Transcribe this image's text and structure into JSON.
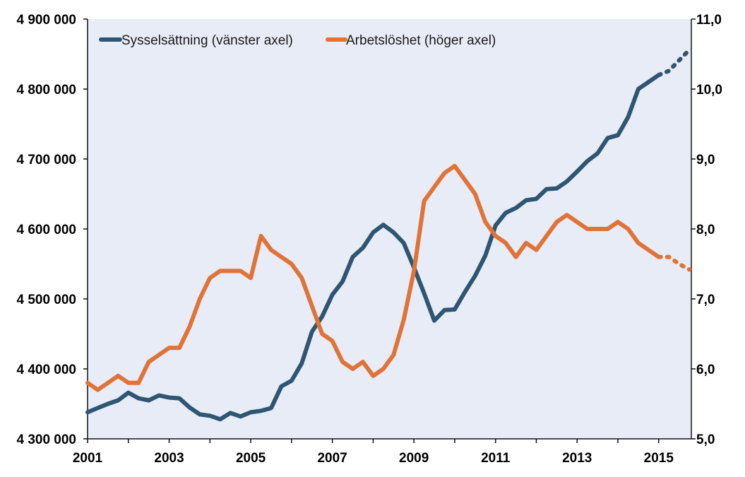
{
  "chart_data": {
    "type": "line",
    "title": "",
    "xlabel": "",
    "ylabel": "",
    "y2label": "",
    "grid": false,
    "legend_position": "top",
    "x_ticks": [
      "2001",
      "2003",
      "2005",
      "2007",
      "2009",
      "2011",
      "2013",
      "2015"
    ],
    "xlim": [
      2001.0,
      2015.8
    ],
    "y_left": {
      "lim": [
        4300000,
        4900000
      ],
      "ticks": [
        4300000,
        4400000,
        4500000,
        4600000,
        4700000,
        4800000,
        4900000
      ],
      "tick_labels": [
        "4 300 000",
        "4 400 000",
        "4 500 000",
        "4 600 000",
        "4 700 000",
        "4 800 000",
        "4 900 000"
      ]
    },
    "y_right": {
      "lim": [
        5.0,
        11.0
      ],
      "ticks": [
        5,
        6,
        7,
        8,
        9,
        10,
        11
      ],
      "tick_labels": [
        "5,0",
        "6,0",
        "7,0",
        "8,0",
        "9,0",
        "10,0",
        "11,0"
      ]
    },
    "series": [
      {
        "name": "Sysselsättning (vänster axel)",
        "axis": "left",
        "color": "#2e5571",
        "forecast_from": 2015.0,
        "points": [
          [
            2001.0,
            4338000
          ],
          [
            2001.25,
            4344000
          ],
          [
            2001.5,
            4350000
          ],
          [
            2001.75,
            4355000
          ],
          [
            2002.0,
            4366000
          ],
          [
            2002.25,
            4358000
          ],
          [
            2002.5,
            4355000
          ],
          [
            2002.75,
            4362000
          ],
          [
            2003.0,
            4359000
          ],
          [
            2003.25,
            4358000
          ],
          [
            2003.5,
            4345000
          ],
          [
            2003.75,
            4335000
          ],
          [
            2004.0,
            4333000
          ],
          [
            2004.25,
            4328000
          ],
          [
            2004.5,
            4337000
          ],
          [
            2004.75,
            4332000
          ],
          [
            2005.0,
            4338000
          ],
          [
            2005.25,
            4340000
          ],
          [
            2005.5,
            4344000
          ],
          [
            2005.75,
            4375000
          ],
          [
            2006.0,
            4383000
          ],
          [
            2006.25,
            4408000
          ],
          [
            2006.5,
            4453000
          ],
          [
            2006.75,
            4475000
          ],
          [
            2007.0,
            4506000
          ],
          [
            2007.25,
            4525000
          ],
          [
            2007.5,
            4560000
          ],
          [
            2007.75,
            4573000
          ],
          [
            2008.0,
            4595000
          ],
          [
            2008.25,
            4606000
          ],
          [
            2008.5,
            4595000
          ],
          [
            2008.75,
            4580000
          ],
          [
            2009.0,
            4545000
          ],
          [
            2009.25,
            4508000
          ],
          [
            2009.5,
            4469000
          ],
          [
            2009.75,
            4484000
          ],
          [
            2010.0,
            4485000
          ],
          [
            2010.25,
            4510000
          ],
          [
            2010.5,
            4533000
          ],
          [
            2010.75,
            4562000
          ],
          [
            2011.0,
            4605000
          ],
          [
            2011.25,
            4623000
          ],
          [
            2011.5,
            4630000
          ],
          [
            2011.75,
            4641000
          ],
          [
            2012.0,
            4643000
          ],
          [
            2012.25,
            4657000
          ],
          [
            2012.5,
            4658000
          ],
          [
            2012.75,
            4668000
          ],
          [
            2013.0,
            4682000
          ],
          [
            2013.25,
            4697000
          ],
          [
            2013.5,
            4708000
          ],
          [
            2013.75,
            4730000
          ],
          [
            2014.0,
            4734000
          ],
          [
            2014.25,
            4760000
          ],
          [
            2014.5,
            4800000
          ],
          [
            2014.75,
            4810000
          ],
          [
            2015.0,
            4820000
          ],
          [
            2015.25,
            4826000
          ],
          [
            2015.5,
            4841000
          ],
          [
            2015.75,
            4856000
          ]
        ]
      },
      {
        "name": "Arbetslöshet (höger axel)",
        "axis": "right",
        "color": "#e07338",
        "forecast_from": 2015.0,
        "points": [
          [
            2001.0,
            5.8
          ],
          [
            2001.25,
            5.7
          ],
          [
            2001.5,
            5.8
          ],
          [
            2001.75,
            5.9
          ],
          [
            2002.0,
            5.8
          ],
          [
            2002.25,
            5.8
          ],
          [
            2002.5,
            6.1
          ],
          [
            2002.75,
            6.2
          ],
          [
            2003.0,
            6.3
          ],
          [
            2003.25,
            6.3
          ],
          [
            2003.5,
            6.6
          ],
          [
            2003.75,
            7.0
          ],
          [
            2004.0,
            7.3
          ],
          [
            2004.25,
            7.4
          ],
          [
            2004.5,
            7.4
          ],
          [
            2004.75,
            7.4
          ],
          [
            2005.0,
            7.3
          ],
          [
            2005.25,
            7.9
          ],
          [
            2005.5,
            7.7
          ],
          [
            2005.75,
            7.6
          ],
          [
            2006.0,
            7.5
          ],
          [
            2006.25,
            7.3
          ],
          [
            2006.5,
            6.9
          ],
          [
            2006.75,
            6.5
          ],
          [
            2007.0,
            6.4
          ],
          [
            2007.25,
            6.1
          ],
          [
            2007.5,
            6.0
          ],
          [
            2007.75,
            6.1
          ],
          [
            2008.0,
            5.9
          ],
          [
            2008.25,
            6.0
          ],
          [
            2008.5,
            6.2
          ],
          [
            2008.75,
            6.7
          ],
          [
            2009.0,
            7.4
          ],
          [
            2009.25,
            8.4
          ],
          [
            2009.5,
            8.6
          ],
          [
            2009.75,
            8.8
          ],
          [
            2010.0,
            8.9
          ],
          [
            2010.25,
            8.7
          ],
          [
            2010.5,
            8.5
          ],
          [
            2010.75,
            8.1
          ],
          [
            2011.0,
            7.9
          ],
          [
            2011.25,
            7.8
          ],
          [
            2011.5,
            7.6
          ],
          [
            2011.75,
            7.8
          ],
          [
            2012.0,
            7.7
          ],
          [
            2012.25,
            7.9
          ],
          [
            2012.5,
            8.1
          ],
          [
            2012.75,
            8.2
          ],
          [
            2013.0,
            8.1
          ],
          [
            2013.25,
            8.0
          ],
          [
            2013.5,
            8.0
          ],
          [
            2013.75,
            8.0
          ],
          [
            2014.0,
            8.1
          ],
          [
            2014.25,
            8.0
          ],
          [
            2014.5,
            7.8
          ],
          [
            2014.75,
            7.7
          ],
          [
            2015.0,
            7.6
          ],
          [
            2015.25,
            7.6
          ],
          [
            2015.5,
            7.5
          ],
          [
            2015.75,
            7.42
          ]
        ]
      }
    ]
  }
}
